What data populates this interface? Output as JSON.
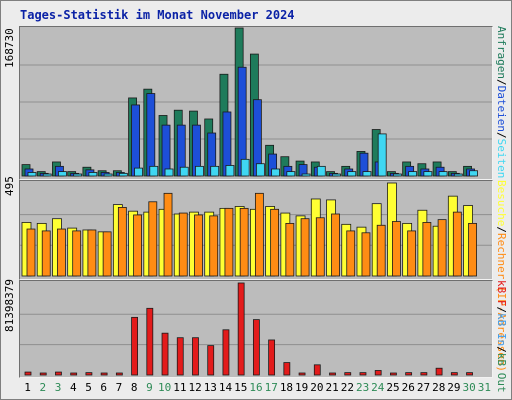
{
  "title": "Tages-Statistik im Monat November 2024",
  "colors": {
    "anfragen": "#1e7b5b",
    "dateien": "#1d4fd8",
    "seiten": "#3fd7f2",
    "besuche": "#ffff33",
    "rechner": "#ff8c14",
    "kbf": "#e31b1b",
    "day_weekday": "#000000",
    "day_weekend": "#2e8b57",
    "grid": "#8f8f8f"
  },
  "top_panel": {
    "max_label": "168730",
    "legend": [
      {
        "text": "Anfragen",
        "color": "#1e7b5b"
      },
      {
        "text": "/",
        "color": "#000000"
      },
      {
        "text": "Dateien",
        "color": "#1d4fd8"
      },
      {
        "text": "/",
        "color": "#000000"
      },
      {
        "text": "Seiten",
        "color": "#3fd7f2"
      }
    ]
  },
  "mid_panel": {
    "max_label": "495",
    "legend": [
      {
        "text": "Besuche",
        "color": "#ffff33"
      },
      {
        "text": "/",
        "color": "#000000"
      },
      {
        "text": "Rechner (IP-Adressen)",
        "color": "#ff8c14"
      }
    ]
  },
  "bottom_panel": {
    "max_label": "81398379",
    "legend": [
      {
        "text": "kB F",
        "color": "#e31b1b"
      },
      {
        "text": "/",
        "color": "#000000"
      },
      {
        "text": "kB In",
        "color": "#3fa0f2"
      },
      {
        "text": "/",
        "color": "#000000"
      },
      {
        "text": "kB Out",
        "color": "#2e8b57"
      }
    ]
  },
  "chart_data": {
    "type": "bar",
    "categories": [
      "1",
      "2",
      "3",
      "4",
      "5",
      "6",
      "7",
      "8",
      "9",
      "10",
      "11",
      "12",
      "13",
      "14",
      "15",
      "16",
      "17",
      "18",
      "19",
      "20",
      "21",
      "22",
      "23",
      "24",
      "25",
      "26",
      "27",
      "28",
      "29",
      "30",
      "31"
    ],
    "weekend_days": [
      "2",
      "3",
      "9",
      "10",
      "16",
      "17",
      "23",
      "24",
      "30",
      "31"
    ],
    "panels": [
      {
        "ylim": [
          0,
          168730
        ],
        "series": [
          {
            "name": "Anfragen",
            "values": [
              13000,
              5000,
              16000,
              5000,
              10000,
              6000,
              6000,
              89000,
              99000,
              69000,
              75000,
              74000,
              65000,
              116000,
              168730,
              139000,
              35000,
              22000,
              17000,
              16000,
              5000,
              11000,
              28000,
              53000,
              5000,
              16000,
              14000,
              16000,
              5000,
              11000,
              0
            ]
          },
          {
            "name": "Dateien",
            "values": [
              8000,
              3000,
              11000,
              3000,
              7000,
              4000,
              4000,
              81000,
              94000,
              58000,
              58000,
              58000,
              49000,
              73000,
              124000,
              87000,
              25000,
              11000,
              13000,
              10000,
              3000,
              8000,
              26000,
              16000,
              3000,
              11000,
              8000,
              10000,
              3000,
              8000,
              0
            ]
          },
          {
            "name": "Seiten",
            "values": [
              4000,
              2000,
              5000,
              2000,
              4000,
              2000,
              3000,
              9000,
              11000,
              8000,
              10000,
              11000,
              11000,
              12000,
              19000,
              14000,
              8000,
              5000,
              2000,
              11000,
              2000,
              5000,
              5000,
              48000,
              2000,
              5000,
              5000,
              5000,
              2000,
              6000,
              0
            ]
          }
        ]
      },
      {
        "ylim": [
          0,
          495
        ],
        "series": [
          {
            "name": "Besuche",
            "values": [
              285,
              280,
              305,
              255,
              245,
              235,
              380,
              345,
              340,
              355,
              330,
              340,
              340,
              360,
              370,
              355,
              370,
              335,
              320,
              410,
              405,
              275,
              260,
              385,
              495,
              280,
              350,
              265,
              425,
              375,
              0
            ]
          },
          {
            "name": "Rechner",
            "values": [
              250,
              240,
              250,
              240,
              245,
              235,
              365,
              325,
              395,
              440,
              335,
              325,
              320,
              360,
              360,
              440,
              355,
              280,
              305,
              310,
              330,
              240,
              230,
              270,
              290,
              240,
              285,
              300,
              340,
              280,
              0
            ]
          }
        ]
      },
      {
        "ylim": [
          0,
          81398379
        ],
        "series": [
          {
            "name": "kB F",
            "values": [
              2600000,
              1600000,
              2600000,
              1100000,
              2100000,
              1100000,
              1100000,
              51000000,
              59000000,
              37000000,
              33000000,
              33000000,
              26000000,
              40000000,
              81398379,
              49000000,
              31000000,
              11000000,
              1100000,
              9000000,
              1100000,
              2100000,
              2100000,
              4000000,
              1100000,
              2100000,
              2100000,
              6000000,
              2100000,
              2100000,
              0
            ]
          }
        ]
      }
    ]
  }
}
